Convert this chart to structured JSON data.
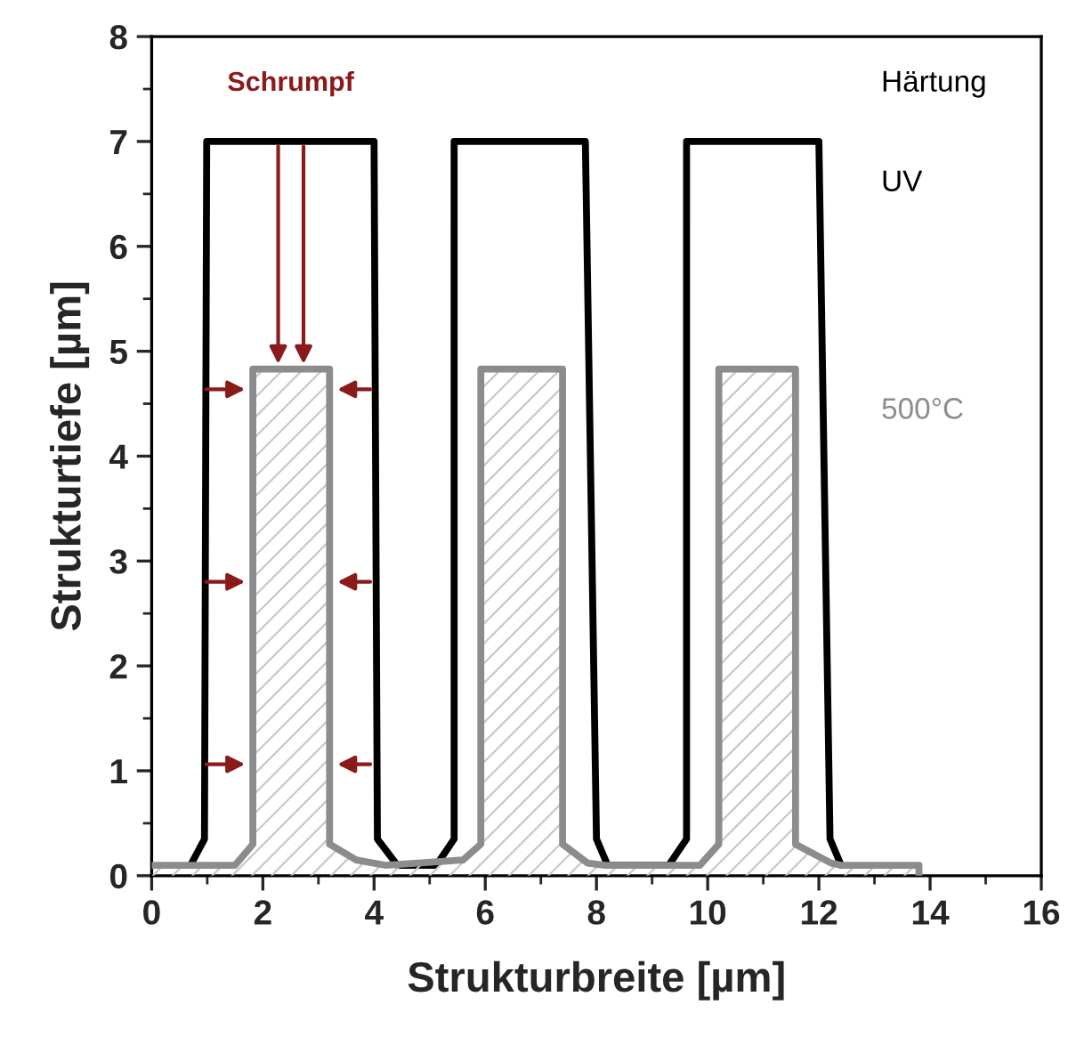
{
  "chart_data": {
    "type": "line",
    "xlabel": "Strukturbreite [µm]",
    "ylabel": "Strukturtiefe [µm]",
    "xlim": [
      0,
      16
    ],
    "xticks": [
      0,
      2,
      4,
      6,
      8,
      10,
      12,
      14,
      16
    ],
    "ylim": [
      0,
      8
    ],
    "yticks": [
      0,
      1,
      2,
      3,
      4,
      5,
      6,
      7,
      8
    ],
    "grid": false,
    "series": [
      {
        "name": "UV",
        "color": "#000000",
        "x": [
          0.7,
          0.95,
          0.99,
          4.0,
          4.06,
          4.42,
          5.12,
          5.44,
          5.44,
          7.8,
          8.0,
          8.2,
          9.3,
          9.62,
          9.62,
          12.0,
          12.2,
          12.4
        ],
        "values": [
          0.1,
          0.35,
          7,
          7,
          0.35,
          0.1,
          0.1,
          0.35,
          7,
          7,
          0.35,
          0.1,
          0.1,
          0.35,
          7,
          7,
          0.35,
          0.1
        ]
      },
      {
        "name": "500°C",
        "color": "#8c8c8c",
        "type": "area",
        "x": [
          0,
          1.5,
          1.82,
          1.82,
          3.2,
          3.2,
          3.68,
          4.2,
          5.6,
          5.92,
          5.92,
          7.39,
          7.39,
          7.84,
          8.16,
          9.86,
          10.2,
          10.2,
          11.58,
          11.58,
          12.22,
          12.4,
          13.8,
          13.8
        ],
        "values": [
          0.1,
          0.1,
          0.3,
          4.83,
          4.83,
          0.3,
          0.15,
          0.1,
          0.15,
          0.3,
          4.83,
          4.83,
          0.3,
          0.12,
          0.1,
          0.1,
          0.3,
          4.83,
          4.83,
          0.3,
          0.12,
          0.1,
          0.1,
          0
        ]
      }
    ],
    "annotations": [
      "Schrumpf",
      "Härtung"
    ]
  }
}
